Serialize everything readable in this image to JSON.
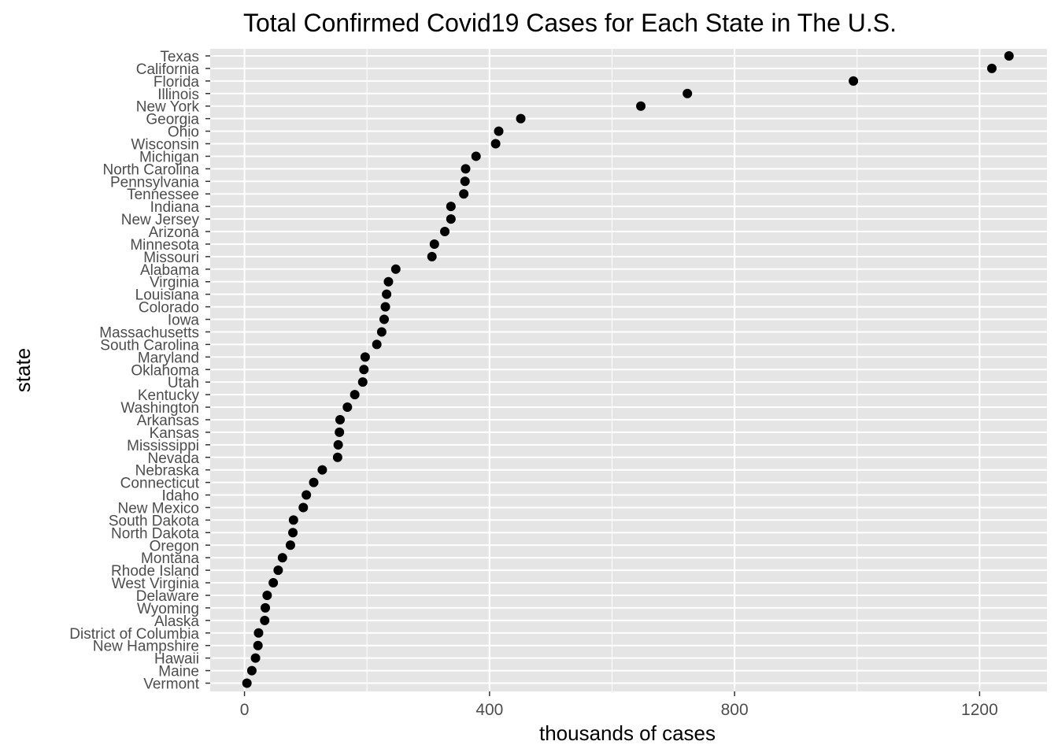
{
  "chart_data": {
    "type": "scatter",
    "title": "Total Confirmed Covid19 Cases for Each State in The U.S.",
    "xlabel": "thousands of cases",
    "ylabel": "state",
    "xlim": [
      -56,
      1310
    ],
    "xticks": [
      0,
      400,
      800,
      1200
    ],
    "grid": true,
    "colors": {
      "panel": "#e5e5e5",
      "grid": "#ffffff",
      "point": "#000000",
      "tick_text": "#4d4d4d"
    },
    "points": [
      {
        "state": "Texas",
        "value": 1248
      },
      {
        "state": "California",
        "value": 1220
      },
      {
        "state": "Florida",
        "value": 994
      },
      {
        "state": "Illinois",
        "value": 723
      },
      {
        "state": "New York",
        "value": 647
      },
      {
        "state": "Georgia",
        "value": 451
      },
      {
        "state": "Ohio",
        "value": 415
      },
      {
        "state": "Wisconsin",
        "value": 410
      },
      {
        "state": "Michigan",
        "value": 378
      },
      {
        "state": "North Carolina",
        "value": 361
      },
      {
        "state": "Pennsylvania",
        "value": 360
      },
      {
        "state": "Tennessee",
        "value": 358
      },
      {
        "state": "Indiana",
        "value": 337
      },
      {
        "state": "New Jersey",
        "value": 337
      },
      {
        "state": "Arizona",
        "value": 327
      },
      {
        "state": "Minnesota",
        "value": 310
      },
      {
        "state": "Missouri",
        "value": 306
      },
      {
        "state": "Alabama",
        "value": 247
      },
      {
        "state": "Virginia",
        "value": 235
      },
      {
        "state": "Louisiana",
        "value": 232
      },
      {
        "state": "Colorado",
        "value": 230
      },
      {
        "state": "Iowa",
        "value": 228
      },
      {
        "state": "Massachusetts",
        "value": 224
      },
      {
        "state": "South Carolina",
        "value": 216
      },
      {
        "state": "Maryland",
        "value": 197
      },
      {
        "state": "Oklahoma",
        "value": 195
      },
      {
        "state": "Utah",
        "value": 193
      },
      {
        "state": "Kentucky",
        "value": 180
      },
      {
        "state": "Washington",
        "value": 168
      },
      {
        "state": "Arkansas",
        "value": 156
      },
      {
        "state": "Kansas",
        "value": 155
      },
      {
        "state": "Mississippi",
        "value": 153
      },
      {
        "state": "Nevada",
        "value": 152
      },
      {
        "state": "Nebraska",
        "value": 127
      },
      {
        "state": "Connecticut",
        "value": 113
      },
      {
        "state": "Idaho",
        "value": 101
      },
      {
        "state": "New Mexico",
        "value": 96
      },
      {
        "state": "South Dakota",
        "value": 80
      },
      {
        "state": "North Dakota",
        "value": 79
      },
      {
        "state": "Oregon",
        "value": 75
      },
      {
        "state": "Montana",
        "value": 62
      },
      {
        "state": "Rhode Island",
        "value": 55
      },
      {
        "state": "West Virginia",
        "value": 47
      },
      {
        "state": "Delaware",
        "value": 37
      },
      {
        "state": "Wyoming",
        "value": 34
      },
      {
        "state": "Alaska",
        "value": 33
      },
      {
        "state": "District of Columbia",
        "value": 23
      },
      {
        "state": "New Hampshire",
        "value": 22
      },
      {
        "state": "Hawaii",
        "value": 18
      },
      {
        "state": "Maine",
        "value": 12
      },
      {
        "state": "Vermont",
        "value": 4
      }
    ]
  }
}
